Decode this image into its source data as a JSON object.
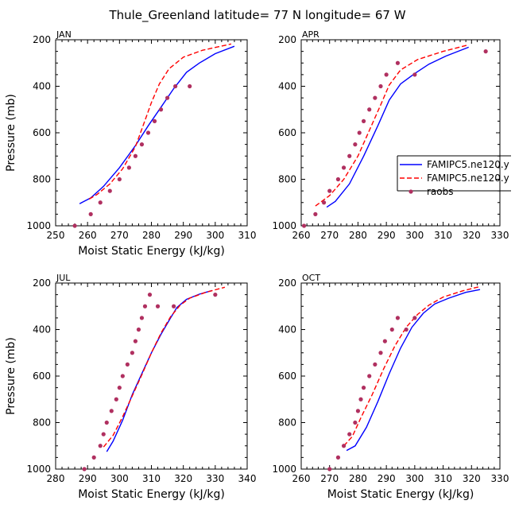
{
  "figure": {
    "title": "Thule_Greenland   latitude= 77 N longitude= 67 W",
    "ylabel": "Pressure (mb)",
    "xlabel": "Moist Static Energy (kJ/kg)",
    "legend": {
      "items": [
        {
          "label": "FAMIPC5.ne120.y",
          "style": "solid-line",
          "color": "#0000ff"
        },
        {
          "label": "FAMIPC5.ne120.y",
          "style": "dashed-line",
          "color": "#ff0000"
        },
        {
          "label": "raobs",
          "style": "dot",
          "color": "#b03060"
        }
      ],
      "placement": "right of APR panel"
    }
  },
  "chart_data": [
    {
      "type": "line",
      "panel": "JAN",
      "xlabel": "Moist Static Energy (kJ/kg)",
      "ylabel": "Pressure (mb)",
      "xlim": [
        250,
        310
      ],
      "ylim": [
        1000,
        200
      ],
      "xticks": [
        250,
        260,
        270,
        280,
        290,
        300,
        310
      ],
      "yticks": [
        200,
        400,
        600,
        800,
        1000
      ],
      "grid": false,
      "series": [
        {
          "name": "FAMIPC5.ne120.y",
          "style": "solid",
          "color": "#0000ff",
          "x": [
            257.5,
            261,
            265,
            270,
            275,
            279,
            283,
            287,
            291,
            295,
            300,
            306
          ],
          "y": [
            905,
            880,
            830,
            750,
            655,
            570,
            490,
            410,
            340,
            300,
            260,
            228
          ]
        },
        {
          "name": "FAMIPC5.ne120.y",
          "style": "dashed",
          "color": "#ff0000",
          "x": [
            260.5,
            263,
            267,
            271,
            275,
            277.5,
            280,
            282.5,
            285.5,
            290,
            296,
            305
          ],
          "y": [
            885,
            865,
            820,
            755,
            660,
            565,
            470,
            390,
            325,
            275,
            245,
            218
          ]
        },
        {
          "name": "raobs",
          "style": "markers",
          "color": "#b03060",
          "x": [
            256,
            261,
            264,
            267,
            270,
            273,
            275,
            277,
            279,
            281,
            283,
            285,
            287.5,
            292
          ],
          "y": [
            1000,
            950,
            900,
            850,
            800,
            750,
            700,
            650,
            600,
            550,
            500,
            450,
            400,
            400
          ]
        }
      ]
    },
    {
      "type": "line",
      "panel": "APR",
      "xlabel": "",
      "ylabel": "",
      "xlim": [
        260,
        330
      ],
      "ylim": [
        1000,
        200
      ],
      "xticks": [
        260,
        270,
        280,
        290,
        300,
        310,
        320,
        330
      ],
      "yticks": [
        200,
        400,
        600,
        800,
        1000
      ],
      "grid": false,
      "series": [
        {
          "name": "FAMIPC5.ne120.y",
          "style": "solid",
          "color": "#0000ff",
          "x": [
            269,
            272,
            277,
            282,
            287,
            291,
            295,
            300,
            305,
            311,
            319
          ],
          "y": [
            920,
            895,
            820,
            700,
            570,
            460,
            390,
            345,
            305,
            270,
            232
          ]
        },
        {
          "name": "FAMIPC5.ne120.y",
          "style": "dashed",
          "color": "#ff0000",
          "x": [
            265,
            270,
            275,
            280,
            284,
            288,
            291,
            295,
            301,
            310,
            319
          ],
          "y": [
            915,
            870,
            800,
            700,
            590,
            480,
            395,
            330,
            285,
            250,
            222
          ]
        },
        {
          "name": "raobs",
          "style": "markers",
          "color": "#b03060",
          "x": [
            261,
            265,
            268,
            270,
            273,
            275,
            277,
            279,
            280.5,
            282,
            284,
            286,
            288,
            290,
            294,
            300,
            325
          ],
          "y": [
            1000,
            950,
            900,
            850,
            800,
            750,
            700,
            650,
            600,
            550,
            500,
            450,
            400,
            350,
            300,
            350,
            250
          ]
        }
      ]
    },
    {
      "type": "line",
      "panel": "JUL",
      "xlabel": "Moist Static Energy (kJ/kg)",
      "ylabel": "Pressure (mb)",
      "xlim": [
        280,
        340
      ],
      "ylim": [
        1000,
        200
      ],
      "xticks": [
        280,
        290,
        300,
        310,
        320,
        330,
        340
      ],
      "yticks": [
        200,
        400,
        600,
        800,
        1000
      ],
      "grid": false,
      "series": [
        {
          "name": "FAMIPC5.ne120.y",
          "style": "solid",
          "color": "#0000ff",
          "x": [
            296,
            298,
            301,
            304,
            307,
            310,
            313,
            316,
            318,
            321,
            325,
            329
          ],
          "y": [
            925,
            880,
            790,
            680,
            590,
            500,
            420,
            350,
            305,
            270,
            248,
            232
          ]
        },
        {
          "name": "FAMIPC5.ne120.y",
          "style": "dashed",
          "color": "#ff0000",
          "x": [
            295,
            298,
            301,
            304,
            307,
            310,
            313,
            316,
            319,
            322,
            327,
            333
          ],
          "y": [
            905,
            855,
            775,
            685,
            595,
            500,
            415,
            345,
            295,
            265,
            240,
            218
          ]
        },
        {
          "name": "raobs",
          "style": "markers",
          "color": "#b03060",
          "x": [
            289,
            292,
            294,
            295,
            296,
            297.5,
            299,
            300,
            301,
            302.5,
            304,
            305,
            306,
            307,
            308,
            309.5,
            312,
            317,
            330
          ],
          "y": [
            1000,
            950,
            900,
            850,
            800,
            750,
            700,
            650,
            600,
            550,
            500,
            450,
            400,
            350,
            300,
            250,
            300,
            300,
            250
          ]
        }
      ]
    },
    {
      "type": "line",
      "panel": "OCT",
      "xlabel": "Moist Static Energy (kJ/kg)",
      "ylabel": "",
      "xlim": [
        260,
        330
      ],
      "ylim": [
        1000,
        200
      ],
      "xticks": [
        260,
        270,
        280,
        290,
        300,
        310,
        320,
        330
      ],
      "yticks": [
        200,
        400,
        600,
        800,
        1000
      ],
      "grid": false,
      "series": [
        {
          "name": "FAMIPC5.ne120.y",
          "style": "solid",
          "color": "#0000ff",
          "x": [
            276,
            279,
            283,
            287,
            291,
            295,
            299,
            303,
            307,
            312,
            318,
            323
          ],
          "y": [
            920,
            900,
            820,
            710,
            590,
            480,
            390,
            330,
            290,
            265,
            240,
            228
          ]
        },
        {
          "name": "FAMIPC5.ne120.y",
          "style": "dashed",
          "color": "#ff0000",
          "x": [
            275,
            278,
            281,
            285,
            289,
            293,
            297,
            301,
            305,
            310,
            317,
            323
          ],
          "y": [
            900,
            860,
            780,
            680,
            570,
            470,
            390,
            335,
            295,
            260,
            233,
            215
          ]
        },
        {
          "name": "raobs",
          "style": "markers",
          "color": "#b03060",
          "x": [
            270,
            273,
            275,
            277,
            279,
            280,
            281,
            282,
            284,
            286,
            288,
            289.5,
            292,
            294,
            297,
            300
          ],
          "y": [
            1000,
            950,
            900,
            850,
            800,
            750,
            700,
            650,
            600,
            550,
            500,
            450,
            400,
            350,
            400,
            350
          ]
        }
      ]
    }
  ]
}
